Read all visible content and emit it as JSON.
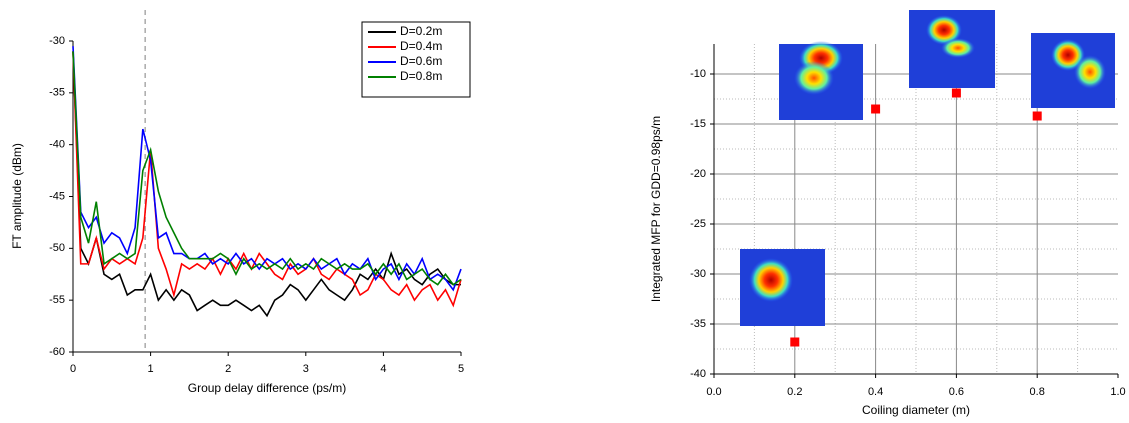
{
  "chart_data": [
    {
      "type": "line",
      "xlabel": "Group delay difference (ps/m)",
      "ylabel": "FT amplitude (dBm)",
      "x": [
        0,
        0.1,
        0.2,
        0.3,
        0.4,
        0.5,
        0.6,
        0.7,
        0.8,
        0.9,
        1,
        1.1,
        1.2,
        1.3,
        1.4,
        1.5,
        1.6,
        1.7,
        1.8,
        1.9,
        2,
        2.1,
        2.2,
        2.3,
        2.4,
        2.5,
        2.6,
        2.7,
        2.8,
        2.9,
        3,
        3.1,
        3.2,
        3.3,
        3.4,
        3.5,
        3.6,
        3.7,
        3.8,
        3.9,
        4,
        4.1,
        4.2,
        4.3,
        4.4,
        4.5,
        4.6,
        4.7,
        4.8,
        4.9,
        5
      ],
      "series": [
        {
          "name": "D=0.2m",
          "color": "#000000",
          "values": [
            -31,
            -50,
            -51.5,
            -49,
            -52.5,
            -53,
            -52.5,
            -54.5,
            -54,
            -54,
            -52.5,
            -55,
            -54,
            -55,
            -54,
            -54.5,
            -56,
            -55.5,
            -55,
            -55.5,
            -55.5,
            -55,
            -55.5,
            -56,
            -55.5,
            -56.5,
            -55,
            -54.5,
            -53.5,
            -54,
            -55,
            -54,
            -53,
            -54,
            -54.5,
            -55,
            -54,
            -52.5,
            -53,
            -52,
            -53,
            -50.5,
            -52.5,
            -52,
            -53,
            -53.5,
            -52.5,
            -52,
            -53,
            -53.5,
            -53.5
          ]
        },
        {
          "name": "D=0.4m",
          "color": "#ff0000",
          "values": [
            -31,
            -51.5,
            -51.5,
            -49,
            -52,
            -51,
            -51.5,
            -51,
            -51.5,
            -49,
            -40.5,
            -50,
            -52,
            -54.5,
            -51.5,
            -52,
            -51.5,
            -52,
            -51,
            -52.5,
            -51,
            -52,
            -50.5,
            -52,
            -50.5,
            -51.5,
            -52.5,
            -53,
            -51.5,
            -52.5,
            -52,
            -51,
            -52.5,
            -53,
            -52,
            -52.5,
            -53,
            -54.5,
            -54,
            -52.5,
            -53,
            -54,
            -54.5,
            -53.5,
            -55,
            -54,
            -53.5,
            -55,
            -54,
            -55.5,
            -53
          ]
        },
        {
          "name": "D=0.6m",
          "color": "#0000ff",
          "values": [
            -30.5,
            -46.5,
            -48,
            -47,
            -49.5,
            -48.5,
            -49,
            -50.5,
            -48,
            -38.5,
            -41.5,
            -49,
            -48.5,
            -50.5,
            -50.5,
            -51,
            -51,
            -50.5,
            -51.5,
            -51,
            -51.5,
            -50.5,
            -51.5,
            -51,
            -52,
            -51,
            -51.5,
            -51,
            -52,
            -51.5,
            -52,
            -51,
            -52,
            -51.5,
            -51,
            -52.5,
            -51.5,
            -52,
            -51,
            -53,
            -52,
            -51.5,
            -53,
            -51.5,
            -52.5,
            -51,
            -53,
            -52.5,
            -53,
            -54,
            -52
          ]
        },
        {
          "name": "D=0.8m",
          "color": "#008000",
          "values": [
            -31,
            -47,
            -49.5,
            -45.5,
            -51.5,
            -51,
            -50.5,
            -51,
            -50.5,
            -42.5,
            -40.5,
            -44.5,
            -47,
            -48.5,
            -50,
            -51,
            -51,
            -51,
            -51,
            -50.5,
            -51,
            -52.5,
            -51,
            -52,
            -51.5,
            -52,
            -51.5,
            -52,
            -51,
            -52,
            -51.5,
            -52,
            -51,
            -51.5,
            -52,
            -51.5,
            -52,
            -52,
            -51.5,
            -52.5,
            -51.5,
            -52.5,
            -51.5,
            -53,
            -52.5,
            -52,
            -53,
            -53.5,
            -52.5,
            -53.5,
            -53
          ]
        }
      ],
      "reference_x": 0.93,
      "xlim": [
        0,
        5
      ],
      "xticks": [
        0,
        1,
        2,
        3,
        4,
        5
      ],
      "ylim": [
        -60,
        -30
      ],
      "yticks": [
        -60,
        -55,
        -50,
        -45,
        -40,
        -35,
        -30
      ],
      "legend": "top-right"
    },
    {
      "type": "scatter",
      "xlabel": "Coiling diameter (m)",
      "ylabel": "Integrated MFP for GDD=0.98ps/m",
      "x": [
        0.2,
        0.4,
        0.6,
        0.8
      ],
      "values": [
        -36.8,
        -13.5,
        -11.9,
        -14.2
      ],
      "color": "#ff0000",
      "xlim": [
        0,
        1
      ],
      "xticks": [
        {
          "value": 0,
          "label": "0.0"
        },
        0.2,
        0.4,
        0.6,
        0.8,
        {
          "value": 1,
          "label": "1.0"
        }
      ],
      "ylim": [
        -40,
        -7
      ],
      "yticks": [
        -40,
        -35,
        -30,
        -25,
        -20,
        -15,
        -10
      ],
      "grid": true
    }
  ]
}
